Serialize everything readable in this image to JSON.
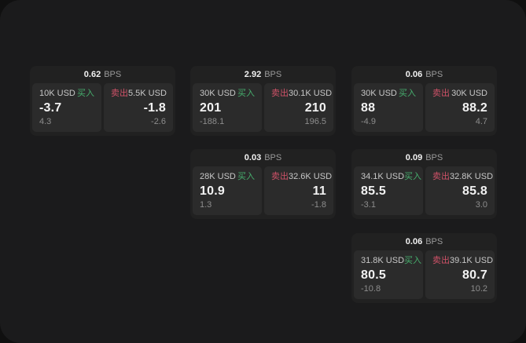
{
  "labels": {
    "buy": "买入",
    "sell": "卖出",
    "bps_unit": "BPS"
  },
  "colors": {
    "buy_green": "#46ad6d",
    "sell_red": "#cf5268",
    "surface": "#1b1b1c",
    "card": "#212121",
    "tile": "#2b2b2b"
  },
  "cards": [
    {
      "bps": "0.62",
      "col": 0,
      "row": 0,
      "buy": {
        "amount": "10K USD",
        "value": "-3.7",
        "delta": "4.3"
      },
      "sell": {
        "amount": "5.5K USD",
        "value": "-1.8",
        "delta": "-2.6"
      }
    },
    {
      "bps": "2.92",
      "col": 1,
      "row": 0,
      "buy": {
        "amount": "30K USD",
        "value": "201",
        "delta": "-188.1"
      },
      "sell": {
        "amount": "30.1K USD",
        "value": "210",
        "delta": "196.5"
      }
    },
    {
      "bps": "0.06",
      "col": 2,
      "row": 0,
      "buy": {
        "amount": "30K USD",
        "value": "88",
        "delta": "-4.9"
      },
      "sell": {
        "amount": "30K USD",
        "value": "88.2",
        "delta": "4.7"
      }
    },
    {
      "bps": "0.03",
      "col": 1,
      "row": 1,
      "buy": {
        "amount": "28K USD",
        "value": "10.9",
        "delta": "1.3"
      },
      "sell": {
        "amount": "32.6K USD",
        "value": "11",
        "delta": "-1.8"
      }
    },
    {
      "bps": "0.09",
      "col": 2,
      "row": 1,
      "buy": {
        "amount": "34.1K USD",
        "value": "85.5",
        "delta": "-3.1"
      },
      "sell": {
        "amount": "32.8K USD",
        "value": "85.8",
        "delta": "3.0"
      }
    },
    {
      "bps": "0.06",
      "col": 2,
      "row": 2,
      "buy": {
        "amount": "31.8K USD",
        "value": "80.5",
        "delta": "-10.8"
      },
      "sell": {
        "amount": "39.1K USD",
        "value": "80.7",
        "delta": "10.2"
      }
    }
  ]
}
